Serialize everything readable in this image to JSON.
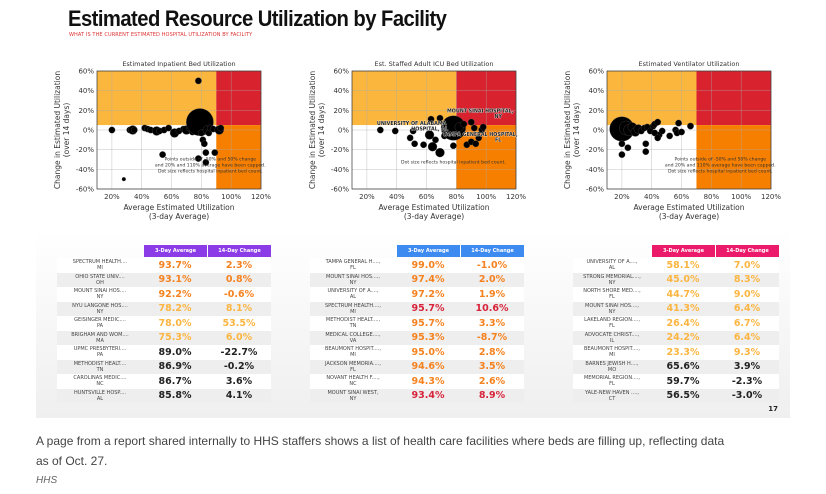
{
  "title": "Estimated Resource Utilization by Facility",
  "subtitle": "WHAT IS THE CURRENT ESTIMATED HOSPITAL UTILIZATION BY FACILITY",
  "page_number": "17",
  "caption": "A page from a report shared internally to HHS staffers shows a list of health care facilities where beds are filling up, reflecting data as of Oct. 27.",
  "credit": "HHS",
  "colors": {
    "warm": "#fbb63e",
    "red": "#d8232e",
    "orange": "#f77f00",
    "purple": "#8c3ce6",
    "blue": "#3d8af0",
    "pink": "#ec1a6a",
    "t_orange": "#f5821f",
    "t_yellow": "#fbb540",
    "t_red": "#d8243a",
    "t_black": "#222222"
  },
  "chart_data": [
    {
      "type": "scatter",
      "title": "Estimated Inpatient Bed Utilization",
      "xlabel": "Average Estimated Utilization",
      "xlabel2": "(3-day Average)",
      "ylabel": "Change in Estimated Utilization",
      "ylabel2": "(over 14 days)",
      "xlim": [
        10,
        120
      ],
      "ylim": [
        -60,
        60
      ],
      "xticks": [
        "20%",
        "40%",
        "60%",
        "80%",
        "100%",
        "120%"
      ],
      "yticks": [
        "60%",
        "40%",
        "20%",
        "0%",
        "-20%",
        "-40%",
        "-60%"
      ],
      "grid": true,
      "x_threshold": 90,
      "y_threshold": 5,
      "note": [
        "Points outside of -50% and 50% change",
        "and 20% and 110% average have been capped.",
        "Dot size reflects hospital inpatient bed count."
      ],
      "labels": [],
      "points": [
        [
          20,
          0,
          2
        ],
        [
          28,
          -50,
          1
        ],
        [
          32,
          0,
          2
        ],
        [
          34,
          0,
          3
        ],
        [
          35,
          0,
          2
        ],
        [
          42,
          2,
          2
        ],
        [
          44,
          1,
          2
        ],
        [
          46,
          0,
          2
        ],
        [
          50,
          -1,
          3
        ],
        [
          52,
          -1,
          2
        ],
        [
          54,
          -25,
          2
        ],
        [
          55,
          0,
          2
        ],
        [
          58,
          2,
          2
        ],
        [
          62,
          -3,
          3
        ],
        [
          65,
          -1,
          2
        ],
        [
          68,
          1,
          2
        ],
        [
          70,
          0,
          3
        ],
        [
          72,
          2,
          2
        ],
        [
          74,
          -2,
          2
        ],
        [
          76,
          3,
          2
        ],
        [
          78,
          50,
          2
        ],
        [
          78,
          -29,
          2
        ],
        [
          79,
          8,
          10
        ],
        [
          80,
          -3,
          2
        ],
        [
          81,
          -10,
          2
        ],
        [
          82,
          -14,
          2
        ],
        [
          83,
          -23,
          2
        ],
        [
          83,
          -33,
          2
        ],
        [
          84,
          0,
          3
        ],
        [
          85,
          -3,
          2
        ],
        [
          86,
          2,
          2
        ],
        [
          88,
          1,
          2
        ],
        [
          89,
          -23,
          2
        ],
        [
          92,
          0,
          3
        ],
        [
          93,
          2,
          2
        ]
      ]
    },
    {
      "type": "scatter",
      "title": "Est. Staffed Adult ICU Bed Utilization",
      "xlabel": "Average Estimated Utilization",
      "xlabel2": "(3-day Average)",
      "ylabel": "Change in Estimated Utilization",
      "ylabel2": "(over 14 days)",
      "xlim": [
        10,
        120
      ],
      "ylim": [
        -60,
        60
      ],
      "xticks": [
        "20%",
        "40%",
        "60%",
        "80%",
        "100%",
        "120%"
      ],
      "yticks": [
        "60%",
        "40%",
        "20%",
        "0%",
        "-20%",
        "-40%",
        "-60%"
      ],
      "grid": true,
      "x_threshold": 80,
      "y_threshold": 5,
      "note": [
        "Dot size reflects hospital inpatient bed count."
      ],
      "labels": [
        {
          "text": "MOUNT SINAI HOSPITAL,",
          "text2": "NY",
          "x": 96,
          "y": 18
        },
        {
          "text": "UNIVERSITY OF ALABAMA",
          "text2": "HOSPITAL, AL",
          "x": 50,
          "y": 5
        },
        {
          "text": "TAMPA GENERAL HOSPITAL,",
          "text2": "FL",
          "x": 96,
          "y": -6
        }
      ],
      "points": [
        [
          29,
          0,
          2
        ],
        [
          39,
          -1,
          2
        ],
        [
          49,
          -8,
          2
        ],
        [
          51,
          -1,
          2
        ],
        [
          52,
          -14,
          2
        ],
        [
          58,
          -15,
          2
        ],
        [
          62,
          -5,
          3
        ],
        [
          63,
          11,
          2
        ],
        [
          64,
          -17,
          3
        ],
        [
          66,
          -10,
          2
        ],
        [
          69,
          12,
          2
        ],
        [
          69,
          -23,
          3
        ],
        [
          72,
          -6,
          2
        ],
        [
          75,
          0,
          5
        ],
        [
          78,
          2,
          9
        ],
        [
          78,
          -16,
          2
        ],
        [
          82,
          3,
          3
        ],
        [
          85,
          6,
          2
        ],
        [
          87,
          -15,
          2
        ],
        [
          90,
          -12,
          2
        ],
        [
          90,
          8,
          2
        ],
        [
          92,
          2,
          2
        ],
        [
          93,
          -14,
          2
        ],
        [
          95,
          -8,
          2
        ],
        [
          97,
          0,
          2
        ],
        [
          98,
          3,
          2
        ]
      ]
    },
    {
      "type": "scatter",
      "title": "Estimated Ventilator Utilization",
      "xlabel": "Average Estimated Utilization",
      "xlabel2": "(3-day Average)",
      "ylabel": "Change in Estimated Utilization",
      "ylabel2": "(over 14 days)",
      "xlim": [
        10,
        120
      ],
      "ylim": [
        -60,
        60
      ],
      "xticks": [
        "20%",
        "40%",
        "60%",
        "80%",
        "100%",
        "120%"
      ],
      "yticks": [
        "60%",
        "40%",
        "20%",
        "0%",
        "-20%",
        "-40%",
        "-60%"
      ],
      "grid": true,
      "x_threshold": 70,
      "y_threshold": 5,
      "note": [
        "Points outside of -50% and 50% change",
        "and 20% and 110% average have been capped.",
        "Dot size reflects hospital inpatient bed count."
      ],
      "labels": [],
      "points": [
        [
          20,
          1,
          9
        ],
        [
          23,
          2,
          5
        ],
        [
          25,
          0,
          4
        ],
        [
          27,
          3,
          3
        ],
        [
          29,
          -2,
          3
        ],
        [
          31,
          1,
          3
        ],
        [
          33,
          -1,
          2
        ],
        [
          35,
          2,
          2
        ],
        [
          37,
          3,
          2
        ],
        [
          39,
          -1,
          2
        ],
        [
          41,
          4,
          2
        ],
        [
          42,
          6,
          2
        ],
        [
          44,
          8,
          2
        ],
        [
          45,
          -5,
          2
        ],
        [
          47,
          -1,
          2
        ],
        [
          20,
          -14,
          2
        ],
        [
          20,
          -25,
          2
        ],
        [
          24,
          -18,
          2
        ],
        [
          36,
          -14,
          2
        ],
        [
          36,
          -22,
          2
        ],
        [
          42,
          -3,
          2
        ],
        [
          44,
          -8,
          2
        ],
        [
          52,
          -6,
          2
        ],
        [
          56,
          0,
          2
        ],
        [
          57,
          -3,
          2
        ],
        [
          58,
          7,
          2
        ],
        [
          60,
          -2,
          2
        ],
        [
          66,
          4,
          2
        ]
      ]
    }
  ],
  "tables": [
    {
      "header": [
        "3-Day Average",
        "14-Day Change"
      ],
      "rows": [
        {
          "name": "SPECTRUM HEALTH....",
          "state": "MI",
          "avg": "93.7%",
          "chg": "2.3%",
          "color": "orange"
        },
        {
          "name": "OHIO STATE UNIV....",
          "state": "OH",
          "avg": "93.1%",
          "chg": "0.8%",
          "color": "orange"
        },
        {
          "name": "MOUNT SINAI HOS....",
          "state": "NY",
          "avg": "92.2%",
          "chg": "-0.6%",
          "color": "orange"
        },
        {
          "name": "NYU LANGONE HOS....",
          "state": "NY",
          "avg": "78.2%",
          "chg": "8.1%",
          "color": "yellow"
        },
        {
          "name": "GEISINGER MEDIC....",
          "state": "PA",
          "avg": "78.0%",
          "chg": "53.5%",
          "color": "yellow"
        },
        {
          "name": "BRIGHAM AND WOM....",
          "state": "MA",
          "avg": "75.3%",
          "chg": "6.0%",
          "color": "yellow"
        },
        {
          "name": "UPMC PRESBYTERI....",
          "state": "PA",
          "avg": "89.0%",
          "chg": "-22.7%",
          "color": "black"
        },
        {
          "name": "METHODIST HEALT....",
          "state": "TN",
          "avg": "86.9%",
          "chg": "-0.2%",
          "color": "black"
        },
        {
          "name": "CAROLINAS MEDIC....",
          "state": "NC",
          "avg": "86.7%",
          "chg": "3.6%",
          "color": "black"
        },
        {
          "name": "HUNTSVILLE HOSP....",
          "state": "AL",
          "avg": "85.8%",
          "chg": "4.1%",
          "color": "black"
        }
      ]
    },
    {
      "header": [
        "3-Day Average",
        "14-Day Change"
      ],
      "rows": [
        {
          "name": "TAMPA GENERAL H....,",
          "state": "FL",
          "avg": "99.0%",
          "chg": "-1.0%",
          "color": "orange"
        },
        {
          "name": "MOUNT SINAI HOS....,",
          "state": "NY",
          "avg": "97.4%",
          "chg": "2.0%",
          "color": "orange"
        },
        {
          "name": "UNIVERSITY OF A....,",
          "state": "AL",
          "avg": "97.2%",
          "chg": "1.9%",
          "color": "orange"
        },
        {
          "name": "SPECTRUM HEALTH....,",
          "state": "MI",
          "avg": "95.7%",
          "chg": "10.6%",
          "color": "red"
        },
        {
          "name": "METHODIST HEALT....,",
          "state": "TN",
          "avg": "95.7%",
          "chg": "3.3%",
          "color": "orange"
        },
        {
          "name": "MEDICAL COLLEGE....,",
          "state": "VA",
          "avg": "95.3%",
          "chg": "-8.7%",
          "color": "orange"
        },
        {
          "name": "BEAUMONT HOSPIT....,",
          "state": "MI",
          "avg": "95.0%",
          "chg": "2.8%",
          "color": "orange"
        },
        {
          "name": "JACKSON MEMORIA....,",
          "state": "FL",
          "avg": "94.6%",
          "chg": "3.5%",
          "color": "orange"
        },
        {
          "name": "NOVANT HEALTH F....,",
          "state": "NC",
          "avg": "94.3%",
          "chg": "2.6%",
          "color": "orange"
        },
        {
          "name": "MOUNT SINAI WEST,",
          "state": "NY",
          "avg": "93.4%",
          "chg": "8.9%",
          "color": "red"
        }
      ]
    },
    {
      "header": [
        "3-Day Average",
        "14-Day Change"
      ],
      "rows": [
        {
          "name": "UNIVERSITY OF A....,",
          "state": "AL",
          "avg": "58.1%",
          "chg": "7.0%",
          "color": "yellow"
        },
        {
          "name": "STRONG MEMORIAL....,",
          "state": "NY",
          "avg": "45.0%",
          "chg": "8.3%",
          "color": "yellow"
        },
        {
          "name": "NORTH SHORE MED....,",
          "state": "FL",
          "avg": "44.7%",
          "chg": "9.0%",
          "color": "yellow"
        },
        {
          "name": "MOUNT SINAI HOS....,",
          "state": "NY",
          "avg": "41.3%",
          "chg": "6.4%",
          "color": "yellow"
        },
        {
          "name": "LAKELAND REGION....,",
          "state": "FL",
          "avg": "26.4%",
          "chg": "6.7%",
          "color": "yellow"
        },
        {
          "name": "ADVOCATE CHRIST....,",
          "state": "IL",
          "avg": "24.2%",
          "chg": "6.4%",
          "color": "yellow"
        },
        {
          "name": "BEAUMONT HOSPIT....,",
          "state": "MI",
          "avg": "23.3%",
          "chg": "9.3%",
          "color": "yellow"
        },
        {
          "name": "BARNES JEWISH H....,",
          "state": "MO",
          "avg": "65.6%",
          "chg": "3.9%",
          "color": "black"
        },
        {
          "name": "MEMORIAL REGION....,",
          "state": "FL",
          "avg": "59.7%",
          "chg": "-2.3%",
          "color": "black"
        },
        {
          "name": "YALE-NEW HAVEN ....,",
          "state": "CT",
          "avg": "56.5%",
          "chg": "-3.0%",
          "color": "black"
        }
      ]
    }
  ]
}
